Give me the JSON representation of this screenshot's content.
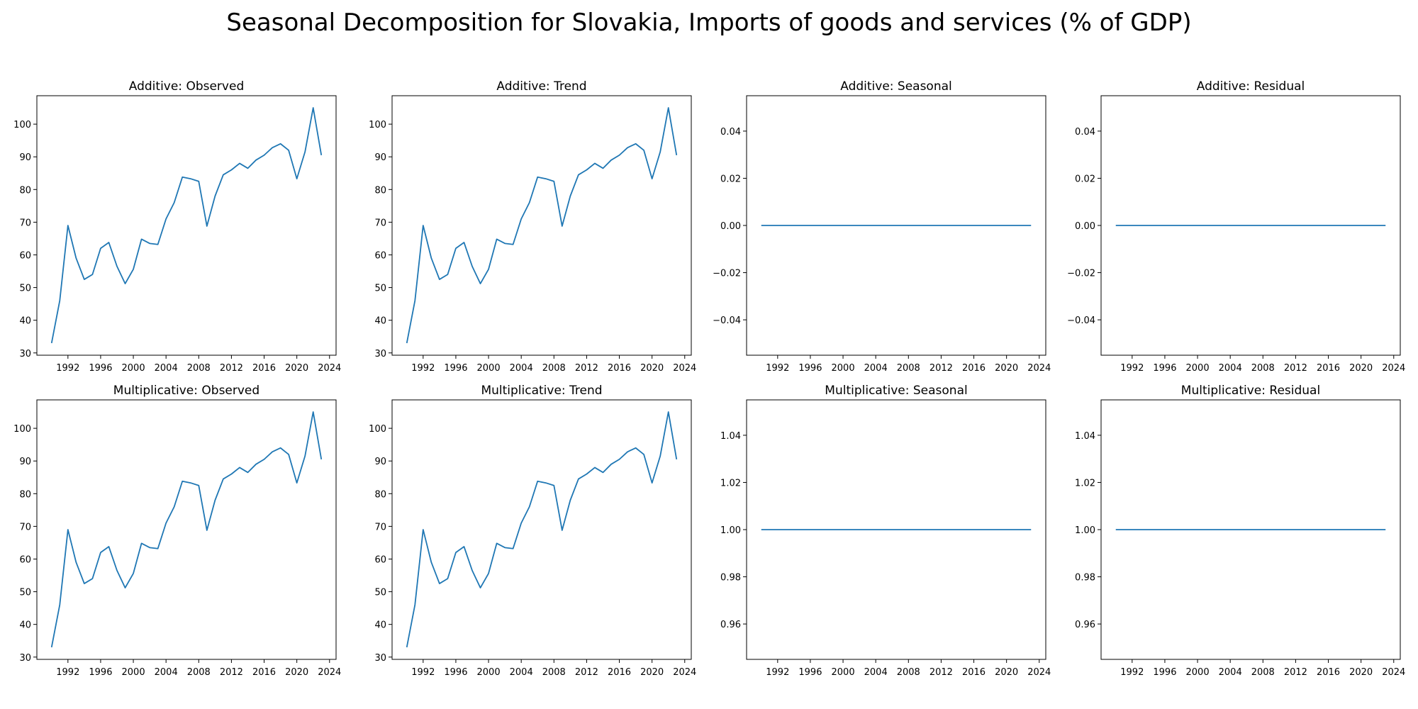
{
  "title": "Seasonal Decomposition for Slovakia, Imports of goods and services (% of GDP)",
  "colors": {
    "line": "#1f77b4",
    "axis": "#000000",
    "background": "#ffffff"
  },
  "chart_data": [
    {
      "type": "line",
      "title": "Additive: Observed",
      "x": [
        1990,
        1991,
        1992,
        1993,
        1994,
        1995,
        1996,
        1997,
        1998,
        1999,
        2000,
        2001,
        2002,
        2003,
        2004,
        2005,
        2006,
        2007,
        2008,
        2009,
        2010,
        2011,
        2012,
        2013,
        2014,
        2015,
        2016,
        2017,
        2018,
        2019,
        2020,
        2021,
        2022,
        2023
      ],
      "values": [
        33.0,
        46.0,
        69.0,
        59.0,
        52.5,
        54.0,
        62.0,
        63.8,
        56.5,
        51.2,
        55.6,
        64.8,
        63.5,
        63.2,
        71.0,
        76.0,
        83.8,
        83.3,
        82.5,
        68.8,
        78.0,
        84.5,
        86.0,
        88.0,
        86.5,
        89.0,
        90.5,
        92.8,
        94.0,
        92.0,
        83.3,
        91.5,
        105.0,
        90.5
      ],
      "xlim": [
        1988.2,
        2024.8
      ],
      "ylim": [
        29.3,
        108.7
      ],
      "xticks": [
        "1992",
        "1996",
        "2000",
        "2004",
        "2008",
        "2012",
        "2016",
        "2020",
        "2024"
      ],
      "yticks": [
        "30",
        "40",
        "50",
        "60",
        "70",
        "80",
        "90",
        "100"
      ],
      "grid": false
    },
    {
      "type": "line",
      "title": "Additive: Trend",
      "x": [
        1990,
        1991,
        1992,
        1993,
        1994,
        1995,
        1996,
        1997,
        1998,
        1999,
        2000,
        2001,
        2002,
        2003,
        2004,
        2005,
        2006,
        2007,
        2008,
        2009,
        2010,
        2011,
        2012,
        2013,
        2014,
        2015,
        2016,
        2017,
        2018,
        2019,
        2020,
        2021,
        2022,
        2023
      ],
      "values": [
        33.0,
        46.0,
        69.0,
        59.0,
        52.5,
        54.0,
        62.0,
        63.8,
        56.5,
        51.2,
        55.6,
        64.8,
        63.5,
        63.2,
        71.0,
        76.0,
        83.8,
        83.3,
        82.5,
        68.8,
        78.0,
        84.5,
        86.0,
        88.0,
        86.5,
        89.0,
        90.5,
        92.8,
        94.0,
        92.0,
        83.3,
        91.5,
        105.0,
        90.5
      ],
      "xlim": [
        1988.2,
        2024.8
      ],
      "ylim": [
        29.3,
        108.7
      ],
      "xticks": [
        "1992",
        "1996",
        "2000",
        "2004",
        "2008",
        "2012",
        "2016",
        "2020",
        "2024"
      ],
      "yticks": [
        "30",
        "40",
        "50",
        "60",
        "70",
        "80",
        "90",
        "100"
      ],
      "grid": false
    },
    {
      "type": "line",
      "title": "Additive: Seasonal",
      "x": [
        1990,
        2023
      ],
      "values": [
        0.0,
        0.0
      ],
      "xlim": [
        1988.2,
        2024.8
      ],
      "ylim": [
        -0.055,
        0.055
      ],
      "xticks": [
        "1992",
        "1996",
        "2000",
        "2004",
        "2008",
        "2012",
        "2016",
        "2020",
        "2024"
      ],
      "yticks": [
        "−0.04",
        "−0.02",
        "0.00",
        "0.02",
        "0.04"
      ],
      "grid": false
    },
    {
      "type": "line",
      "title": "Additive: Residual",
      "x": [
        1990,
        2023
      ],
      "values": [
        0.0,
        0.0
      ],
      "xlim": [
        1988.2,
        2024.8
      ],
      "ylim": [
        -0.055,
        0.055
      ],
      "xticks": [
        "1992",
        "1996",
        "2000",
        "2004",
        "2008",
        "2012",
        "2016",
        "2020",
        "2024"
      ],
      "yticks": [
        "−0.04",
        "−0.02",
        "0.00",
        "0.02",
        "0.04"
      ],
      "grid": false
    },
    {
      "type": "line",
      "title": "Multiplicative: Observed",
      "x": [
        1990,
        1991,
        1992,
        1993,
        1994,
        1995,
        1996,
        1997,
        1998,
        1999,
        2000,
        2001,
        2002,
        2003,
        2004,
        2005,
        2006,
        2007,
        2008,
        2009,
        2010,
        2011,
        2012,
        2013,
        2014,
        2015,
        2016,
        2017,
        2018,
        2019,
        2020,
        2021,
        2022,
        2023
      ],
      "values": [
        33.0,
        46.0,
        69.0,
        59.0,
        52.5,
        54.0,
        62.0,
        63.8,
        56.5,
        51.2,
        55.6,
        64.8,
        63.5,
        63.2,
        71.0,
        76.0,
        83.8,
        83.3,
        82.5,
        68.8,
        78.0,
        84.5,
        86.0,
        88.0,
        86.5,
        89.0,
        90.5,
        92.8,
        94.0,
        92.0,
        83.3,
        91.5,
        105.0,
        90.5
      ],
      "xlim": [
        1988.2,
        2024.8
      ],
      "ylim": [
        29.3,
        108.7
      ],
      "xticks": [
        "1992",
        "1996",
        "2000",
        "2004",
        "2008",
        "2012",
        "2016",
        "2020",
        "2024"
      ],
      "yticks": [
        "30",
        "40",
        "50",
        "60",
        "70",
        "80",
        "90",
        "100"
      ],
      "grid": false
    },
    {
      "type": "line",
      "title": "Multiplicative: Trend",
      "x": [
        1990,
        1991,
        1992,
        1993,
        1994,
        1995,
        1996,
        1997,
        1998,
        1999,
        2000,
        2001,
        2002,
        2003,
        2004,
        2005,
        2006,
        2007,
        2008,
        2009,
        2010,
        2011,
        2012,
        2013,
        2014,
        2015,
        2016,
        2017,
        2018,
        2019,
        2020,
        2021,
        2022,
        2023
      ],
      "values": [
        33.0,
        46.0,
        69.0,
        59.0,
        52.5,
        54.0,
        62.0,
        63.8,
        56.5,
        51.2,
        55.6,
        64.8,
        63.5,
        63.2,
        71.0,
        76.0,
        83.8,
        83.3,
        82.5,
        68.8,
        78.0,
        84.5,
        86.0,
        88.0,
        86.5,
        89.0,
        90.5,
        92.8,
        94.0,
        92.0,
        83.3,
        91.5,
        105.0,
        90.5
      ],
      "xlim": [
        1988.2,
        2024.8
      ],
      "ylim": [
        29.3,
        108.7
      ],
      "xticks": [
        "1992",
        "1996",
        "2000",
        "2004",
        "2008",
        "2012",
        "2016",
        "2020",
        "2024"
      ],
      "yticks": [
        "30",
        "40",
        "50",
        "60",
        "70",
        "80",
        "90",
        "100"
      ],
      "grid": false
    },
    {
      "type": "line",
      "title": "Multiplicative: Seasonal",
      "x": [
        1990,
        2023
      ],
      "values": [
        1.0,
        1.0
      ],
      "xlim": [
        1988.2,
        2024.8
      ],
      "ylim": [
        0.945,
        1.055
      ],
      "xticks": [
        "1992",
        "1996",
        "2000",
        "2004",
        "2008",
        "2012",
        "2016",
        "2020",
        "2024"
      ],
      "yticks": [
        "0.96",
        "0.98",
        "1.00",
        "1.02",
        "1.04"
      ],
      "grid": false
    },
    {
      "type": "line",
      "title": "Multiplicative: Residual",
      "x": [
        1990,
        2023
      ],
      "values": [
        1.0,
        1.0
      ],
      "xlim": [
        1988.2,
        2024.8
      ],
      "ylim": [
        0.945,
        1.055
      ],
      "xticks": [
        "1992",
        "1996",
        "2000",
        "2004",
        "2008",
        "2012",
        "2016",
        "2020",
        "2024"
      ],
      "yticks": [
        "0.96",
        "0.98",
        "1.00",
        "1.02",
        "1.04"
      ],
      "grid": false
    }
  ]
}
